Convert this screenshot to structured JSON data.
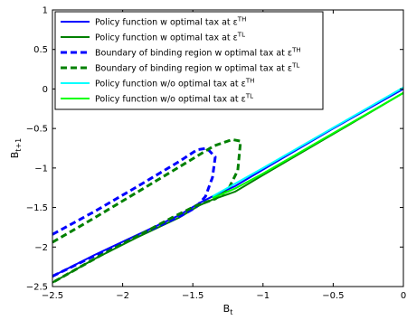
{
  "chart_data": {
    "type": "line",
    "xlabel": "B",
    "xlabel_sub": "t",
    "ylabel": "B",
    "ylabel_sub": "t+1",
    "xlim": [
      -2.5,
      0
    ],
    "ylim": [
      -2.5,
      1
    ],
    "grid": false,
    "legend_position": "top-left",
    "xticks": [
      -2.5,
      -2,
      -1.5,
      -1,
      -0.5,
      0
    ],
    "xtick_labels": [
      "−2.5",
      "−2",
      "−1.5",
      "−1",
      "−0.5",
      "0"
    ],
    "yticks": [
      -2.5,
      -2,
      -1.5,
      -1,
      -0.5,
      0,
      0.5,
      1
    ],
    "ytick_labels": [
      "−2.5",
      "−2",
      "−1.5",
      "−1",
      "−0.5",
      "0",
      "0.5",
      "1"
    ],
    "series": [
      {
        "name": "Policy function w optimal tax at ε",
        "sup": "TH",
        "color": "#0000ff",
        "dash": "solid",
        "points": [
          [
            -2.5,
            -2.37
          ],
          [
            -2.2,
            -2.1
          ],
          [
            -1.9,
            -1.85
          ],
          [
            -1.6,
            -1.6
          ],
          [
            -1.45,
            -1.44
          ],
          [
            -1.36,
            -1.36
          ],
          [
            -1.2,
            -1.23
          ],
          [
            -1.0,
            -1.02
          ],
          [
            -0.5,
            -0.5
          ],
          [
            0,
            0.0
          ]
        ]
      },
      {
        "name": "Policy function w optimal tax at ε",
        "sup": "TL",
        "color": "#008000",
        "dash": "solid",
        "points": [
          [
            -2.5,
            -2.45
          ],
          [
            -2.2,
            -2.15
          ],
          [
            -1.9,
            -1.88
          ],
          [
            -1.6,
            -1.63
          ],
          [
            -1.45,
            -1.47
          ],
          [
            -1.36,
            -1.4
          ],
          [
            -1.2,
            -1.3
          ],
          [
            -1.0,
            -1.09
          ],
          [
            -0.5,
            -0.57
          ],
          [
            0,
            -0.05
          ]
        ]
      },
      {
        "name": "Boundary of binding region w optimal tax at ε",
        "sup": "TH",
        "color": "#0000ff",
        "dash": "dashed",
        "points": [
          [
            -2.5,
            -1.84
          ],
          [
            -2.2,
            -1.55
          ],
          [
            -1.9,
            -1.24
          ],
          [
            -1.6,
            -0.92
          ],
          [
            -1.47,
            -0.77
          ],
          [
            -1.4,
            -0.75
          ],
          [
            -1.34,
            -0.86
          ],
          [
            -1.36,
            -1.12
          ],
          [
            -1.41,
            -1.36
          ],
          [
            -1.48,
            -1.5
          ],
          [
            -1.58,
            -1.6
          ],
          [
            -1.75,
            -1.74
          ],
          [
            -1.95,
            -1.9
          ],
          [
            -2.2,
            -2.11
          ],
          [
            -2.5,
            -2.37
          ]
        ]
      },
      {
        "name": "Boundary of binding region w optimal tax at ε",
        "sup": "TL",
        "color": "#008000",
        "dash": "dashed",
        "points": [
          [
            -2.5,
            -1.94
          ],
          [
            -2.2,
            -1.63
          ],
          [
            -1.9,
            -1.31
          ],
          [
            -1.6,
            -0.99
          ],
          [
            -1.35,
            -0.72
          ],
          [
            -1.22,
            -0.64
          ],
          [
            -1.16,
            -0.66
          ],
          [
            -1.18,
            -1.03
          ],
          [
            -1.25,
            -1.28
          ],
          [
            -1.34,
            -1.39
          ],
          [
            -1.48,
            -1.48
          ],
          [
            -1.65,
            -1.63
          ],
          [
            -1.85,
            -1.82
          ],
          [
            -2.15,
            -2.1
          ],
          [
            -2.5,
            -2.45
          ]
        ]
      },
      {
        "name": "Policy function w/o optimal tax at ε",
        "sup": "TH",
        "color": "#00ffff",
        "dash": "solid",
        "points": [
          [
            -1.36,
            -1.36
          ],
          [
            -1.2,
            -1.2
          ],
          [
            -1.0,
            -1.0
          ],
          [
            -0.5,
            -0.49
          ],
          [
            0,
            0.02
          ]
        ]
      },
      {
        "name": "Policy function w/o optimal tax at ε",
        "sup": "TL",
        "color": "#00ff00",
        "dash": "solid",
        "points": [
          [
            -1.36,
            -1.38
          ],
          [
            -1.2,
            -1.26
          ],
          [
            -1.0,
            -1.07
          ],
          [
            -0.5,
            -0.56
          ],
          [
            0,
            -0.05
          ]
        ]
      }
    ]
  }
}
